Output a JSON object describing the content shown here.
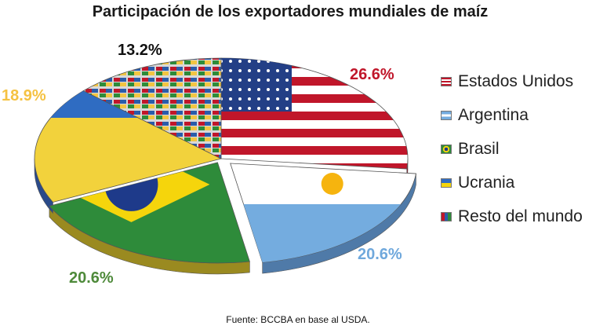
{
  "chart_data": {
    "type": "pie",
    "title": "Participación de los exportadores mundiales de maíz",
    "categories": [
      "Estados Unidos",
      "Argentina",
      "Brasil",
      "Ucrania",
      "Resto del mundo"
    ],
    "values": [
      26.6,
      20.6,
      20.6,
      18.9,
      13.2
    ],
    "value_labels": [
      "26.6%",
      "20.6%",
      "20.6%",
      "18.9%",
      "13.2%"
    ],
    "label_colors": [
      "#c0162a",
      "#6fa8dc",
      "#4e8a3a",
      "#f5c242",
      "#111111"
    ],
    "legend_position": "right",
    "source": "Fuente: BCCBA en base al USDA."
  }
}
